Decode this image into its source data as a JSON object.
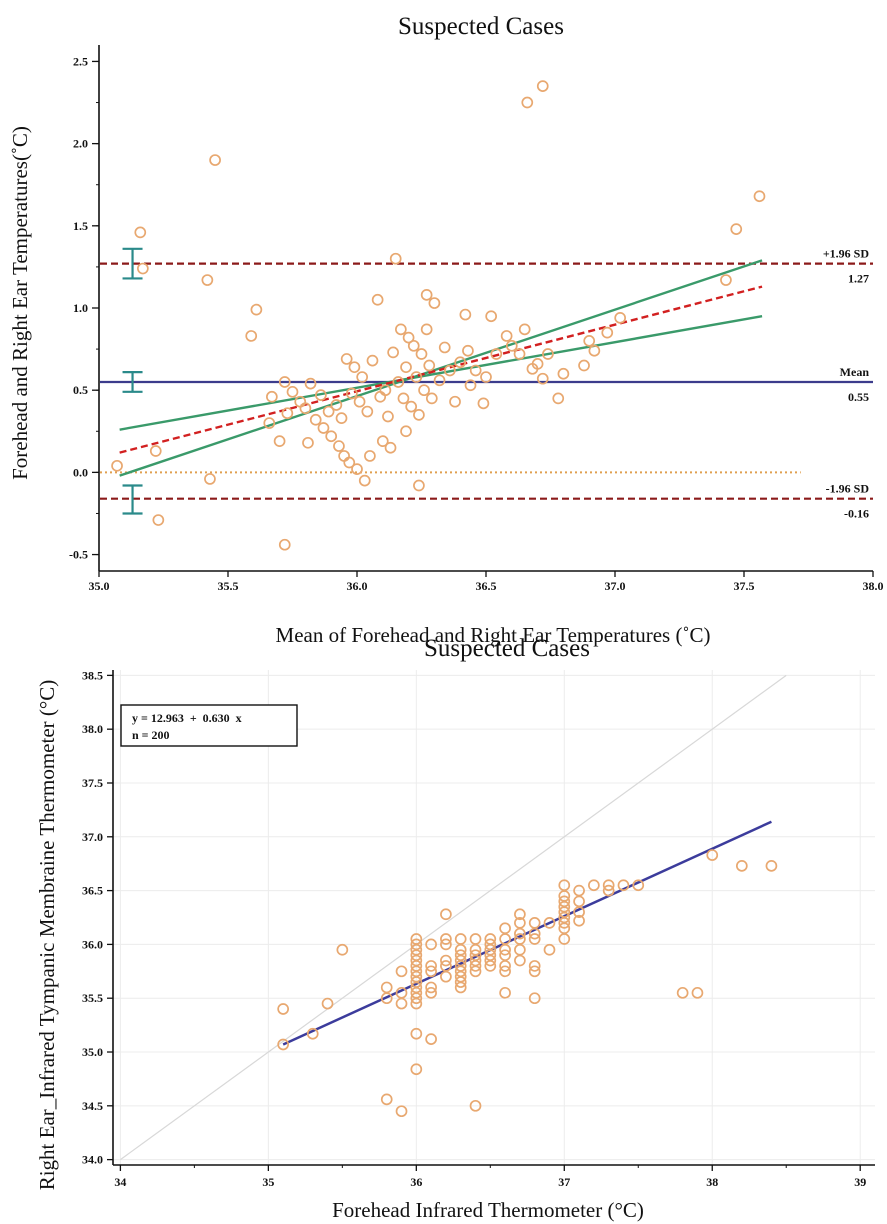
{
  "chart_data": [
    {
      "type": "scatter",
      "subtype": "bland-altman",
      "title": "Suspected Cases",
      "xlabel": "Mean of Forehead and Right Ear Temperatures (˚C)",
      "ylabel": "Forehead and Right Ear Temperatures(˚C)",
      "xlim": [
        35.0,
        38.0
      ],
      "ylim": [
        -0.6,
        2.6
      ],
      "xticks": [
        "35.0",
        "35.5",
        "36.0",
        "36.5",
        "37.0",
        "37.5",
        "38.0"
      ],
      "yticks": [
        "-0.5",
        "0.0",
        "0.5",
        "1.0",
        "1.5",
        "2.0",
        "2.5"
      ],
      "grid": false,
      "reference_lines": [
        {
          "label": "+1.96 SD",
          "value_label": "1.27",
          "y": 1.27,
          "style": "dashed",
          "color": "#8b1a1a"
        },
        {
          "label": "Mean",
          "value_label": "0.55",
          "y": 0.55,
          "style": "solid",
          "color": "#3c3c8c"
        },
        {
          "label": "-1.96 SD",
          "value_label": "-0.16",
          "y": -0.16,
          "style": "dashed",
          "color": "#8b1a1a"
        },
        {
          "label": "",
          "value_label": "",
          "y": 0.0,
          "style": "dotted",
          "color": "#e0a050"
        }
      ],
      "regression_line": {
        "x": [
          35.08,
          37.57
        ],
        "y": [
          0.12,
          1.13
        ],
        "color": "#d22020",
        "style": "dashed"
      },
      "confidence_band": {
        "upper": {
          "x": [
            35.08,
            37.57
          ],
          "y": [
            0.26,
            0.95
          ]
        },
        "lower": {
          "x": [
            35.08,
            37.57
          ],
          "y": [
            -0.02,
            1.29
          ]
        },
        "color": "#3a9a6a"
      },
      "ci_error_bars": [
        {
          "x": 35.13,
          "low": 1.18,
          "high": 1.36
        },
        {
          "x": 35.13,
          "low": 0.49,
          "high": 0.61
        },
        {
          "x": 35.13,
          "low": -0.25,
          "high": -0.08
        }
      ],
      "marker_color": "#e8a870",
      "points": [
        {
          "x": 35.07,
          "y": 0.04
        },
        {
          "x": 35.16,
          "y": 1.46
        },
        {
          "x": 35.17,
          "y": 1.24
        },
        {
          "x": 35.22,
          "y": 0.13
        },
        {
          "x": 35.23,
          "y": -0.29
        },
        {
          "x": 35.42,
          "y": 1.17
        },
        {
          "x": 35.43,
          "y": -0.04
        },
        {
          "x": 35.45,
          "y": 1.9
        },
        {
          "x": 35.59,
          "y": 0.83
        },
        {
          "x": 35.61,
          "y": 0.99
        },
        {
          "x": 35.66,
          "y": 0.3
        },
        {
          "x": 35.67,
          "y": 0.46
        },
        {
          "x": 35.7,
          "y": 0.19
        },
        {
          "x": 35.72,
          "y": 0.55
        },
        {
          "x": 35.72,
          "y": -0.44
        },
        {
          "x": 35.73,
          "y": 0.36
        },
        {
          "x": 35.75,
          "y": 0.49
        },
        {
          "x": 35.78,
          "y": 0.43
        },
        {
          "x": 35.8,
          "y": 0.39
        },
        {
          "x": 35.81,
          "y": 0.18
        },
        {
          "x": 35.82,
          "y": 0.54
        },
        {
          "x": 35.84,
          "y": 0.32
        },
        {
          "x": 35.86,
          "y": 0.47
        },
        {
          "x": 35.87,
          "y": 0.27
        },
        {
          "x": 35.89,
          "y": 0.37
        },
        {
          "x": 35.9,
          "y": 0.22
        },
        {
          "x": 35.92,
          "y": 0.41
        },
        {
          "x": 35.93,
          "y": 0.16
        },
        {
          "x": 35.94,
          "y": 0.33
        },
        {
          "x": 35.95,
          "y": 0.1
        },
        {
          "x": 35.96,
          "y": 0.69
        },
        {
          "x": 35.97,
          "y": 0.06
        },
        {
          "x": 35.98,
          "y": 0.48
        },
        {
          "x": 35.99,
          "y": 0.64
        },
        {
          "x": 36.0,
          "y": 0.02
        },
        {
          "x": 36.01,
          "y": 0.43
        },
        {
          "x": 36.02,
          "y": 0.58
        },
        {
          "x": 36.03,
          "y": -0.05
        },
        {
          "x": 36.04,
          "y": 0.37
        },
        {
          "x": 36.05,
          "y": 0.1
        },
        {
          "x": 36.06,
          "y": 0.68
        },
        {
          "x": 36.08,
          "y": 1.05
        },
        {
          "x": 36.09,
          "y": 0.46
        },
        {
          "x": 36.1,
          "y": 0.19
        },
        {
          "x": 36.11,
          "y": 0.5
        },
        {
          "x": 36.12,
          "y": 0.34
        },
        {
          "x": 36.13,
          "y": 0.15
        },
        {
          "x": 36.14,
          "y": 0.73
        },
        {
          "x": 36.15,
          "y": 1.3
        },
        {
          "x": 36.16,
          "y": 0.55
        },
        {
          "x": 36.17,
          "y": 0.87
        },
        {
          "x": 36.18,
          "y": 0.45
        },
        {
          "x": 36.19,
          "y": 0.25
        },
        {
          "x": 36.19,
          "y": 0.64
        },
        {
          "x": 36.2,
          "y": 0.82
        },
        {
          "x": 36.21,
          "y": 0.4
        },
        {
          "x": 36.22,
          "y": 0.77
        },
        {
          "x": 36.23,
          "y": 0.58
        },
        {
          "x": 36.24,
          "y": 0.35
        },
        {
          "x": 36.24,
          "y": -0.08
        },
        {
          "x": 36.25,
          "y": 0.72
        },
        {
          "x": 36.26,
          "y": 0.5
        },
        {
          "x": 36.27,
          "y": 1.08
        },
        {
          "x": 36.27,
          "y": 0.87
        },
        {
          "x": 36.28,
          "y": 0.65
        },
        {
          "x": 36.29,
          "y": 0.45
        },
        {
          "x": 36.3,
          "y": 1.03
        },
        {
          "x": 36.32,
          "y": 0.56
        },
        {
          "x": 36.34,
          "y": 0.76
        },
        {
          "x": 36.36,
          "y": 0.62
        },
        {
          "x": 36.38,
          "y": 0.43
        },
        {
          "x": 36.4,
          "y": 0.67
        },
        {
          "x": 36.42,
          "y": 0.96
        },
        {
          "x": 36.43,
          "y": 0.74
        },
        {
          "x": 36.44,
          "y": 0.53
        },
        {
          "x": 36.46,
          "y": 0.62
        },
        {
          "x": 36.49,
          "y": 0.42
        },
        {
          "x": 36.5,
          "y": 0.58
        },
        {
          "x": 36.52,
          "y": 0.95
        },
        {
          "x": 36.54,
          "y": 0.72
        },
        {
          "x": 36.58,
          "y": 0.83
        },
        {
          "x": 36.6,
          "y": 0.77
        },
        {
          "x": 36.63,
          "y": 0.72
        },
        {
          "x": 36.65,
          "y": 0.87
        },
        {
          "x": 36.66,
          "y": 2.25
        },
        {
          "x": 36.68,
          "y": 0.63
        },
        {
          "x": 36.7,
          "y": 0.66
        },
        {
          "x": 36.72,
          "y": 0.57
        },
        {
          "x": 36.72,
          "y": 2.35
        },
        {
          "x": 36.74,
          "y": 0.72
        },
        {
          "x": 36.78,
          "y": 0.45
        },
        {
          "x": 36.8,
          "y": 0.6
        },
        {
          "x": 36.88,
          "y": 0.65
        },
        {
          "x": 36.9,
          "y": 0.8
        },
        {
          "x": 36.92,
          "y": 0.74
        },
        {
          "x": 36.97,
          "y": 0.85
        },
        {
          "x": 37.02,
          "y": 0.94
        },
        {
          "x": 37.43,
          "y": 1.17
        },
        {
          "x": 37.47,
          "y": 1.48
        },
        {
          "x": 37.56,
          "y": 1.68
        }
      ]
    },
    {
      "type": "scatter",
      "title": "Suspected Cases",
      "xlabel": "Forehead Infrared Thermometer (°C)",
      "ylabel": "Right Ear_Infrared Tympanic Membraine Thermometer (°C)",
      "xlim": [
        33.95,
        39.1
      ],
      "ylim": [
        33.95,
        38.55
      ],
      "xticks": [
        "34",
        "35",
        "36",
        "37",
        "38",
        "39"
      ],
      "yticks": [
        "34.0",
        "34.5",
        "35.0",
        "35.5",
        "36.0",
        "36.5",
        "37.0",
        "37.5",
        "38.0",
        "38.5"
      ],
      "grid": true,
      "legend_box": {
        "equation": "y = 12.963  +  0.630  x",
        "n": "n = 200",
        "placement": "top-left"
      },
      "identity_line": {
        "x": [
          34.0,
          38.5
        ],
        "y": [
          34.0,
          38.5
        ],
        "color": "#d8d8d8"
      },
      "regression_line": {
        "x": [
          35.1,
          38.4
        ],
        "y": [
          35.07,
          37.14
        ],
        "color": "#3c3c9c"
      },
      "marker_color": "#e8a870",
      "points": [
        {
          "x": 35.1,
          "y": 35.4
        },
        {
          "x": 35.1,
          "y": 35.07
        },
        {
          "x": 35.3,
          "y": 35.17
        },
        {
          "x": 35.4,
          "y": 35.45
        },
        {
          "x": 35.5,
          "y": 35.95
        },
        {
          "x": 35.8,
          "y": 35.6
        },
        {
          "x": 35.8,
          "y": 35.5
        },
        {
          "x": 35.8,
          "y": 34.56
        },
        {
          "x": 35.9,
          "y": 35.75
        },
        {
          "x": 35.9,
          "y": 35.55
        },
        {
          "x": 35.9,
          "y": 35.45
        },
        {
          "x": 35.9,
          "y": 34.45
        },
        {
          "x": 36.0,
          "y": 36.05
        },
        {
          "x": 36.0,
          "y": 36.0
        },
        {
          "x": 36.0,
          "y": 35.95
        },
        {
          "x": 36.0,
          "y": 35.9
        },
        {
          "x": 36.0,
          "y": 35.85
        },
        {
          "x": 36.0,
          "y": 35.8
        },
        {
          "x": 36.0,
          "y": 35.75
        },
        {
          "x": 36.0,
          "y": 35.7
        },
        {
          "x": 36.0,
          "y": 35.65
        },
        {
          "x": 36.0,
          "y": 35.6
        },
        {
          "x": 36.0,
          "y": 35.55
        },
        {
          "x": 36.0,
          "y": 35.5
        },
        {
          "x": 36.0,
          "y": 35.45
        },
        {
          "x": 36.0,
          "y": 35.17
        },
        {
          "x": 36.0,
          "y": 34.84
        },
        {
          "x": 36.1,
          "y": 36.0
        },
        {
          "x": 36.1,
          "y": 35.8
        },
        {
          "x": 36.1,
          "y": 35.75
        },
        {
          "x": 36.1,
          "y": 35.6
        },
        {
          "x": 36.1,
          "y": 35.55
        },
        {
          "x": 36.1,
          "y": 35.12
        },
        {
          "x": 36.2,
          "y": 36.28
        },
        {
          "x": 36.2,
          "y": 36.05
        },
        {
          "x": 36.2,
          "y": 36.0
        },
        {
          "x": 36.2,
          "y": 35.85
        },
        {
          "x": 36.2,
          "y": 35.8
        },
        {
          "x": 36.2,
          "y": 35.7
        },
        {
          "x": 36.3,
          "y": 36.05
        },
        {
          "x": 36.3,
          "y": 35.95
        },
        {
          "x": 36.3,
          "y": 35.9
        },
        {
          "x": 36.3,
          "y": 35.85
        },
        {
          "x": 36.3,
          "y": 35.8
        },
        {
          "x": 36.3,
          "y": 35.75
        },
        {
          "x": 36.3,
          "y": 35.7
        },
        {
          "x": 36.3,
          "y": 35.65
        },
        {
          "x": 36.3,
          "y": 35.6
        },
        {
          "x": 36.4,
          "y": 36.05
        },
        {
          "x": 36.4,
          "y": 35.95
        },
        {
          "x": 36.4,
          "y": 35.9
        },
        {
          "x": 36.4,
          "y": 35.85
        },
        {
          "x": 36.4,
          "y": 35.8
        },
        {
          "x": 36.4,
          "y": 35.75
        },
        {
          "x": 36.4,
          "y": 34.5
        },
        {
          "x": 36.5,
          "y": 36.05
        },
        {
          "x": 36.5,
          "y": 36.0
        },
        {
          "x": 36.5,
          "y": 35.95
        },
        {
          "x": 36.5,
          "y": 35.9
        },
        {
          "x": 36.5,
          "y": 35.85
        },
        {
          "x": 36.5,
          "y": 35.8
        },
        {
          "x": 36.6,
          "y": 36.15
        },
        {
          "x": 36.6,
          "y": 36.05
        },
        {
          "x": 36.6,
          "y": 35.95
        },
        {
          "x": 36.6,
          "y": 35.9
        },
        {
          "x": 36.6,
          "y": 35.8
        },
        {
          "x": 36.6,
          "y": 35.75
        },
        {
          "x": 36.6,
          "y": 35.55
        },
        {
          "x": 36.7,
          "y": 36.28
        },
        {
          "x": 36.7,
          "y": 36.2
        },
        {
          "x": 36.7,
          "y": 36.1
        },
        {
          "x": 36.7,
          "y": 36.05
        },
        {
          "x": 36.7,
          "y": 35.95
        },
        {
          "x": 36.7,
          "y": 35.85
        },
        {
          "x": 36.8,
          "y": 36.2
        },
        {
          "x": 36.8,
          "y": 36.1
        },
        {
          "x": 36.8,
          "y": 36.05
        },
        {
          "x": 36.8,
          "y": 35.8
        },
        {
          "x": 36.8,
          "y": 35.75
        },
        {
          "x": 36.8,
          "y": 35.5
        },
        {
          "x": 36.9,
          "y": 36.2
        },
        {
          "x": 36.9,
          "y": 35.95
        },
        {
          "x": 37.0,
          "y": 36.55
        },
        {
          "x": 37.0,
          "y": 36.45
        },
        {
          "x": 37.0,
          "y": 36.4
        },
        {
          "x": 37.0,
          "y": 36.35
        },
        {
          "x": 37.0,
          "y": 36.3
        },
        {
          "x": 37.0,
          "y": 36.25
        },
        {
          "x": 37.0,
          "y": 36.2
        },
        {
          "x": 37.0,
          "y": 36.15
        },
        {
          "x": 37.0,
          "y": 36.05
        },
        {
          "x": 37.1,
          "y": 36.5
        },
        {
          "x": 37.1,
          "y": 36.4
        },
        {
          "x": 37.1,
          "y": 36.3
        },
        {
          "x": 37.1,
          "y": 36.22
        },
        {
          "x": 37.2,
          "y": 36.55
        },
        {
          "x": 37.3,
          "y": 36.55
        },
        {
          "x": 37.3,
          "y": 36.5
        },
        {
          "x": 37.4,
          "y": 36.55
        },
        {
          "x": 37.5,
          "y": 36.55
        },
        {
          "x": 37.8,
          "y": 35.55
        },
        {
          "x": 37.9,
          "y": 35.55
        },
        {
          "x": 38.0,
          "y": 36.83
        },
        {
          "x": 38.2,
          "y": 36.73
        },
        {
          "x": 38.4,
          "y": 36.73
        }
      ]
    }
  ]
}
